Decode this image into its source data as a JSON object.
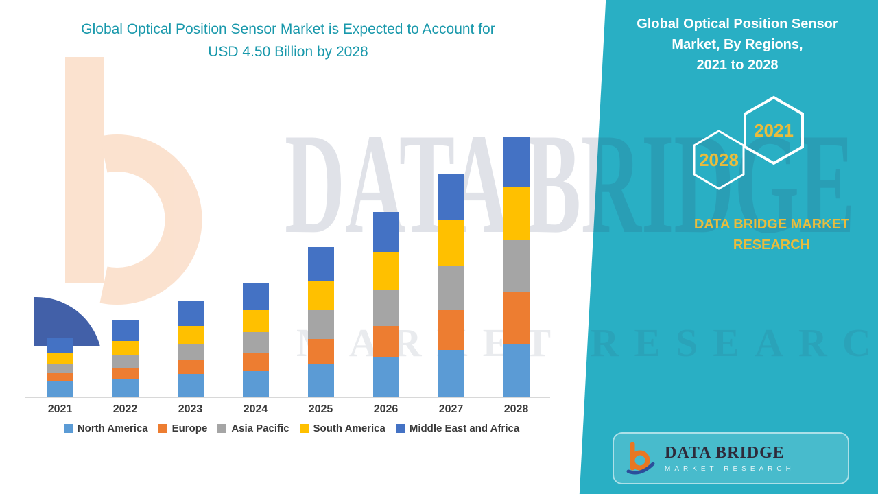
{
  "colors": {
    "teal_panel": "#29AFC4",
    "title_teal": "#1898AB",
    "gold": "#E9BC3D",
    "axis_line": "#D8D8D8",
    "label_dark": "#3A3A3A",
    "logo_orange": "#E87722",
    "logo_blue": "#2B4E9B"
  },
  "main_title": {
    "line1": "Global Optical Position Sensor Market is Expected to Account for",
    "line2": "USD 4.50 Billion by 2028"
  },
  "chart_data": {
    "type": "bar",
    "stacked": true,
    "unit": "USD Billion",
    "grid": false,
    "legend_position": "bottom",
    "categories": [
      "2021",
      "2022",
      "2023",
      "2024",
      "2025",
      "2026",
      "2027",
      "2028"
    ],
    "series": [
      {
        "name": "North America",
        "color": "#5B9BD5",
        "values": [
          0.26,
          0.31,
          0.39,
          0.45,
          0.57,
          0.69,
          0.81,
          0.9
        ]
      },
      {
        "name": "Europe",
        "color": "#ED7D31",
        "values": [
          0.14,
          0.18,
          0.24,
          0.31,
          0.43,
          0.54,
          0.69,
          0.92
        ]
      },
      {
        "name": "Asia Pacific",
        "color": "#A5A5A5",
        "values": [
          0.17,
          0.23,
          0.29,
          0.36,
          0.5,
          0.62,
          0.76,
          0.89
        ]
      },
      {
        "name": "South America",
        "color": "#FFC000",
        "values": [
          0.18,
          0.25,
          0.31,
          0.38,
          0.5,
          0.65,
          0.8,
          0.93
        ]
      },
      {
        "name": "Middle East and Africa",
        "color": "#4472C4",
        "values": [
          0.27,
          0.36,
          0.44,
          0.48,
          0.6,
          0.7,
          0.81,
          0.86
        ]
      }
    ],
    "totals": [
      1.02,
      1.33,
      1.67,
      1.98,
      2.6,
      3.2,
      3.87,
      4.5
    ],
    "ylim": [
      0,
      4.5
    ],
    "title": "Global Optical Position Sensor Market is Expected to Account for USD 4.50 Billion by 2028"
  },
  "panel": {
    "title_line1": "Global Optical Position Sensor",
    "title_line2": "Market, By Regions,",
    "title_line3": "2021 to 2028",
    "hex_left": "2028",
    "hex_right": "2021",
    "brand_line1": "DATA BRIDGE MARKET",
    "brand_line2": "RESEARCH"
  },
  "watermark": {
    "text1": "DATA BRIDGE",
    "text2": "MARKET RESEARCH"
  },
  "footer_logo": {
    "name": "DATA BRIDGE",
    "tagline": "MARKET RESEARCH"
  }
}
